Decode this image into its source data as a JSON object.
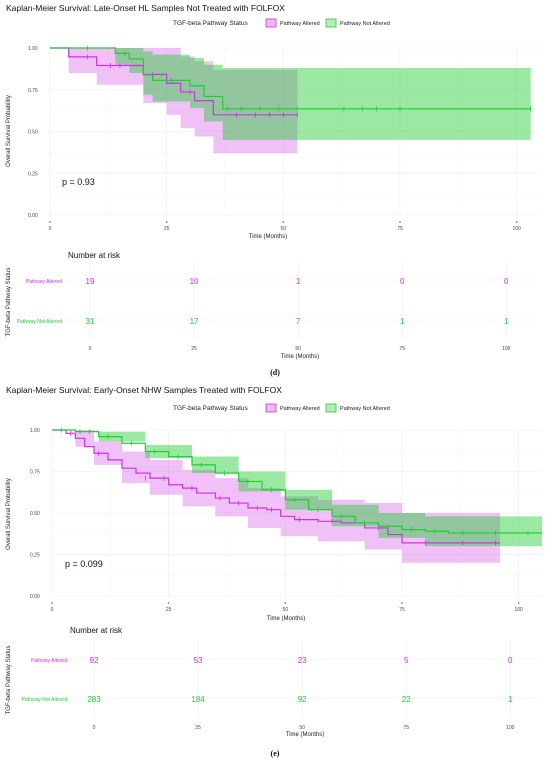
{
  "colors": {
    "altered": "#cc33e6",
    "not_altered": "#22cc33"
  },
  "legend": {
    "title": "TGF-beta Pathway Status",
    "items": [
      "Pathway Altered",
      "Pathway Not Altered"
    ]
  },
  "captions": [
    "(d)",
    "(e)"
  ],
  "chart_data": [
    {
      "type": "line",
      "subtype": "kaplan-meier",
      "title": "Kaplan-Meier Survival: Late-Onset HL Samples Not Treated with FOLFOX",
      "xlabel": "Time (Months)",
      "ylabel": "Overall Survival Probability",
      "xlim": [
        0,
        105
      ],
      "ylim": [
        0,
        1
      ],
      "x_ticks": [
        0,
        25,
        50,
        75,
        100
      ],
      "y_ticks": [
        "0.00",
        "0.25",
        "0.50",
        "0.75",
        "1.00"
      ],
      "annotation": "p = 0.93",
      "legend_position": "top",
      "series": [
        {
          "name": "Pathway Altered",
          "steps": [
            [
              0,
              1.0
            ],
            [
              4,
              1.0
            ],
            [
              4,
              0.947
            ],
            [
              10,
              0.947
            ],
            [
              10,
              0.895
            ],
            [
              20,
              0.895
            ],
            [
              20,
              0.842
            ],
            [
              25,
              0.842
            ],
            [
              25,
              0.789
            ],
            [
              28,
              0.789
            ],
            [
              28,
              0.737
            ],
            [
              31,
              0.737
            ],
            [
              31,
              0.684
            ],
            [
              35,
              0.684
            ],
            [
              35,
              0.6
            ],
            [
              53,
              0.6
            ]
          ],
          "ci_lower": [
            [
              0,
              1.0
            ],
            [
              4,
              0.85
            ],
            [
              10,
              0.78
            ],
            [
              20,
              0.67
            ],
            [
              25,
              0.6
            ],
            [
              28,
              0.52
            ],
            [
              31,
              0.47
            ],
            [
              35,
              0.37
            ],
            [
              53,
              0.37
            ]
          ],
          "ci_upper": [
            [
              0,
              1.0
            ],
            [
              4,
              1.0
            ],
            [
              10,
              1.0
            ],
            [
              20,
              1.0
            ],
            [
              25,
              1.0
            ],
            [
              28,
              0.95
            ],
            [
              31,
              0.92
            ],
            [
              35,
              0.87
            ],
            [
              53,
              0.87
            ]
          ],
          "censors": [
            [
              8,
              0.947
            ],
            [
              13,
              0.895
            ],
            [
              15,
              0.895
            ],
            [
              22,
              0.842
            ],
            [
              30,
              0.737
            ],
            [
              40,
              0.6
            ],
            [
              44,
              0.6
            ],
            [
              47,
              0.6
            ],
            [
              50,
              0.6
            ],
            [
              53,
              0.6
            ]
          ]
        },
        {
          "name": "Pathway Not Altered",
          "steps": [
            [
              0,
              1.0
            ],
            [
              14,
              1.0
            ],
            [
              14,
              0.968
            ],
            [
              17,
              0.968
            ],
            [
              17,
              0.935
            ],
            [
              20,
              0.935
            ],
            [
              20,
              0.839
            ],
            [
              22,
              0.839
            ],
            [
              22,
              0.806
            ],
            [
              30,
              0.806
            ],
            [
              30,
              0.774
            ],
            [
              33,
              0.774
            ],
            [
              33,
              0.71
            ],
            [
              37,
              0.71
            ],
            [
              37,
              0.636
            ],
            [
              103,
              0.636
            ]
          ],
          "ci_lower": [
            [
              0,
              1.0
            ],
            [
              14,
              0.9
            ],
            [
              17,
              0.85
            ],
            [
              20,
              0.72
            ],
            [
              22,
              0.68
            ],
            [
              30,
              0.64
            ],
            [
              33,
              0.56
            ],
            [
              37,
              0.45
            ],
            [
              103,
              0.45
            ]
          ],
          "ci_upper": [
            [
              0,
              1.0
            ],
            [
              14,
              1.0
            ],
            [
              17,
              1.0
            ],
            [
              20,
              0.98
            ],
            [
              22,
              0.96
            ],
            [
              30,
              0.94
            ],
            [
              33,
              0.9
            ],
            [
              37,
              0.88
            ],
            [
              103,
              0.88
            ]
          ],
          "censors": [
            [
              8,
              1.0
            ],
            [
              16,
              0.968
            ],
            [
              24,
              0.839
            ],
            [
              26,
              0.806
            ],
            [
              38,
              0.636
            ],
            [
              41,
              0.636
            ],
            [
              45,
              0.636
            ],
            [
              49,
              0.636
            ],
            [
              53,
              0.636
            ],
            [
              63,
              0.636
            ],
            [
              67,
              0.636
            ],
            [
              70,
              0.636
            ],
            [
              75,
              0.636
            ],
            [
              103,
              0.636
            ]
          ]
        }
      ],
      "risk_table": {
        "title": "Number at risk",
        "ylabel": "TGF-beta Pathway Status",
        "xlabel": "Time (Months)",
        "times": [
          0,
          25,
          50,
          75,
          100
        ],
        "rows": [
          {
            "label": "Pathway Altered",
            "counts": [
              19,
              10,
              1,
              0,
              0
            ]
          },
          {
            "label": "Pathway Not Altered",
            "counts": [
              31,
              17,
              7,
              1,
              1
            ]
          }
        ]
      }
    },
    {
      "type": "line",
      "subtype": "kaplan-meier",
      "title": "Kaplan-Meier Survival: Early-Onset NHW Samples Treated with FOLFOX",
      "xlabel": "Time (Months)",
      "ylabel": "Overall Survival Probability",
      "xlim": [
        0,
        105
      ],
      "ylim": [
        0,
        1
      ],
      "x_ticks": [
        0,
        25,
        50,
        75,
        100
      ],
      "y_ticks": [
        "0.00",
        "0.25",
        "0.50",
        "0.75",
        "1.00"
      ],
      "annotation": "p = 0.099",
      "legend_position": "top",
      "series": [
        {
          "name": "Pathway Altered",
          "steps": [
            [
              0,
              1.0
            ],
            [
              3,
              0.98
            ],
            [
              5,
              0.95
            ],
            [
              7,
              0.9
            ],
            [
              9,
              0.86
            ],
            [
              12,
              0.82
            ],
            [
              15,
              0.77
            ],
            [
              18,
              0.74
            ],
            [
              21,
              0.71
            ],
            [
              25,
              0.67
            ],
            [
              28,
              0.65
            ],
            [
              31,
              0.62
            ],
            [
              35,
              0.59
            ],
            [
              38,
              0.56
            ],
            [
              42,
              0.53
            ],
            [
              46,
              0.52
            ],
            [
              49,
              0.48
            ],
            [
              52,
              0.46
            ],
            [
              57,
              0.45
            ],
            [
              62,
              0.44
            ],
            [
              67,
              0.41
            ],
            [
              72,
              0.37
            ],
            [
              75,
              0.32
            ],
            [
              96,
              0.32
            ]
          ],
          "ci_lower": [
            [
              0,
              1.0
            ],
            [
              5,
              0.9
            ],
            [
              9,
              0.79
            ],
            [
              15,
              0.68
            ],
            [
              21,
              0.61
            ],
            [
              28,
              0.54
            ],
            [
              35,
              0.48
            ],
            [
              42,
              0.41
            ],
            [
              49,
              0.36
            ],
            [
              57,
              0.33
            ],
            [
              67,
              0.28
            ],
            [
              75,
              0.2
            ],
            [
              96,
              0.2
            ]
          ],
          "ci_upper": [
            [
              0,
              1.0
            ],
            [
              5,
              1.0
            ],
            [
              9,
              0.93
            ],
            [
              15,
              0.87
            ],
            [
              21,
              0.82
            ],
            [
              28,
              0.76
            ],
            [
              35,
              0.71
            ],
            [
              42,
              0.65
            ],
            [
              49,
              0.6
            ],
            [
              57,
              0.58
            ],
            [
              67,
              0.56
            ],
            [
              75,
              0.5
            ],
            [
              96,
              0.5
            ]
          ],
          "censors": [
            [
              4,
              0.98
            ],
            [
              10,
              0.86
            ],
            [
              20,
              0.71
            ],
            [
              24,
              0.71
            ],
            [
              30,
              0.65
            ],
            [
              36,
              0.59
            ],
            [
              40,
              0.56
            ],
            [
              44,
              0.53
            ],
            [
              47,
              0.52
            ],
            [
              53,
              0.46
            ],
            [
              60,
              0.45
            ],
            [
              70,
              0.41
            ],
            [
              80,
              0.32
            ],
            [
              88,
              0.32
            ],
            [
              95,
              0.32
            ]
          ]
        },
        {
          "name": "Pathway Not Altered",
          "steps": [
            [
              0,
              1.0
            ],
            [
              5,
              0.99
            ],
            [
              10,
              0.96
            ],
            [
              15,
              0.92
            ],
            [
              20,
              0.87
            ],
            [
              25,
              0.84
            ],
            [
              30,
              0.79
            ],
            [
              35,
              0.74
            ],
            [
              40,
              0.69
            ],
            [
              45,
              0.64
            ],
            [
              50,
              0.58
            ],
            [
              55,
              0.52
            ],
            [
              60,
              0.48
            ],
            [
              65,
              0.44
            ],
            [
              70,
              0.42
            ],
            [
              75,
              0.4
            ],
            [
              80,
              0.39
            ],
            [
              85,
              0.38
            ],
            [
              105,
              0.38
            ]
          ],
          "ci_lower": [
            [
              0,
              1.0
            ],
            [
              10,
              0.93
            ],
            [
              20,
              0.83
            ],
            [
              30,
              0.74
            ],
            [
              40,
              0.63
            ],
            [
              50,
              0.52
            ],
            [
              60,
              0.42
            ],
            [
              70,
              0.35
            ],
            [
              80,
              0.3
            ],
            [
              105,
              0.27
            ]
          ],
          "ci_upper": [
            [
              0,
              1.0
            ],
            [
              10,
              0.99
            ],
            [
              20,
              0.91
            ],
            [
              30,
              0.84
            ],
            [
              40,
              0.75
            ],
            [
              50,
              0.64
            ],
            [
              60,
              0.55
            ],
            [
              70,
              0.5
            ],
            [
              80,
              0.48
            ],
            [
              105,
              0.48
            ]
          ],
          "censors": [
            [
              2,
              1.0
            ],
            [
              6,
              0.99
            ],
            [
              8,
              0.99
            ],
            [
              12,
              0.96
            ],
            [
              17,
              0.92
            ],
            [
              22,
              0.87
            ],
            [
              27,
              0.84
            ],
            [
              32,
              0.79
            ],
            [
              37,
              0.74
            ],
            [
              42,
              0.69
            ],
            [
              47,
              0.64
            ],
            [
              52,
              0.58
            ],
            [
              57,
              0.52
            ],
            [
              62,
              0.48
            ],
            [
              67,
              0.44
            ],
            [
              72,
              0.42
            ],
            [
              77,
              0.4
            ],
            [
              82,
              0.39
            ],
            [
              88,
              0.38
            ],
            [
              95,
              0.38
            ],
            [
              102,
              0.38
            ]
          ]
        }
      ],
      "risk_table": {
        "title": "Number at risk",
        "ylabel": "TGF-beta Pathway Status",
        "xlabel": "Time (Months)",
        "times": [
          0,
          25,
          50,
          75,
          100
        ],
        "rows": [
          {
            "label": "Pathway Altered",
            "counts": [
              92,
              53,
              23,
              5,
              0
            ]
          },
          {
            "label": "Pathway Not Altered",
            "counts": [
              283,
              184,
              92,
              22,
              1
            ]
          }
        ]
      }
    }
  ]
}
